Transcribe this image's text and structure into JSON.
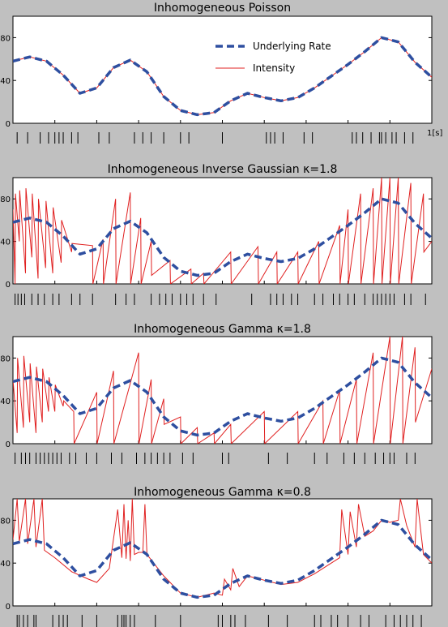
{
  "figure": {
    "background": "#c0c0c0",
    "time_unit_label": "1[s]"
  },
  "colors": {
    "rate": "#2e4fa0",
    "intensity": "#e02020",
    "panel": "#ffffff",
    "axis": "#000000"
  },
  "chart_data": [
    {
      "type": "line",
      "title": "Inhomogeneous Poisson",
      "x_range": [
        0,
        1
      ],
      "ylim": [
        0,
        100
      ],
      "yticks": [
        0,
        40,
        80
      ],
      "legend": {
        "placement": "top-right",
        "entries": [
          "Underlying Rate",
          "Intensity"
        ]
      },
      "series": [
        {
          "name": "Underlying Rate",
          "style": "dashed",
          "x": [
            0,
            0.04,
            0.08,
            0.12,
            0.16,
            0.2,
            0.24,
            0.28,
            0.32,
            0.36,
            0.4,
            0.44,
            0.48,
            0.52,
            0.56,
            0.6,
            0.64,
            0.68,
            0.72,
            0.76,
            0.8,
            0.84,
            0.88,
            0.92,
            0.96,
            1
          ],
          "y": [
            58,
            62,
            58,
            45,
            28,
            33,
            52,
            59,
            48,
            25,
            12,
            8,
            10,
            21,
            28,
            24,
            21,
            24,
            33,
            44,
            55,
            67,
            80,
            76,
            57,
            43
          ]
        },
        {
          "name": "Intensity",
          "style": "solid",
          "x": [
            0,
            0.04,
            0.08,
            0.12,
            0.16,
            0.2,
            0.24,
            0.28,
            0.32,
            0.36,
            0.4,
            0.44,
            0.48,
            0.52,
            0.56,
            0.6,
            0.64,
            0.68,
            0.72,
            0.76,
            0.8,
            0.84,
            0.88,
            0.92,
            0.96,
            1
          ],
          "y": [
            58,
            62,
            58,
            45,
            28,
            33,
            52,
            59,
            48,
            25,
            12,
            8,
            10,
            21,
            28,
            24,
            21,
            24,
            33,
            44,
            55,
            67,
            80,
            76,
            57,
            43
          ]
        }
      ],
      "spikes": [
        0.01,
        0.035,
        0.065,
        0.085,
        0.1,
        0.11,
        0.12,
        0.14,
        0.155,
        0.205,
        0.23,
        0.29,
        0.31,
        0.33,
        0.36,
        0.4,
        0.42,
        0.5,
        0.605,
        0.615,
        0.625,
        0.645,
        0.695,
        0.715,
        0.81,
        0.82,
        0.835,
        0.855,
        0.875,
        0.88,
        0.89,
        0.905,
        0.915,
        0.935,
        0.955
      ]
    },
    {
      "type": "line",
      "title": "Inhomogeneous Inverse Gaussian κ=1.8",
      "x_range": [
        0,
        1
      ],
      "ylim": [
        0,
        100
      ],
      "yticks": [
        0,
        40,
        80
      ],
      "series": [
        {
          "name": "Underlying Rate",
          "style": "dashed",
          "x": [
            0,
            0.04,
            0.08,
            0.12,
            0.16,
            0.2,
            0.24,
            0.28,
            0.32,
            0.36,
            0.4,
            0.44,
            0.48,
            0.52,
            0.56,
            0.6,
            0.64,
            0.68,
            0.72,
            0.76,
            0.8,
            0.84,
            0.88,
            0.92,
            0.96,
            1
          ],
          "y": [
            58,
            62,
            58,
            45,
            28,
            33,
            52,
            59,
            48,
            25,
            12,
            8,
            10,
            21,
            28,
            24,
            21,
            24,
            33,
            44,
            55,
            67,
            80,
            76,
            57,
            43
          ]
        },
        {
          "name": "Intensity",
          "style": "solid",
          "x": [
            0,
            0.005,
            0.006,
            0.015,
            0.016,
            0.03,
            0.031,
            0.045,
            0.046,
            0.06,
            0.061,
            0.078,
            0.079,
            0.095,
            0.096,
            0.115,
            0.116,
            0.14,
            0.141,
            0.19,
            0.191,
            0.215,
            0.216,
            0.245,
            0.246,
            0.28,
            0.281,
            0.305,
            0.306,
            0.33,
            0.331,
            0.375,
            0.376,
            0.425,
            0.426,
            0.455,
            0.456,
            0.52,
            0.521,
            0.585,
            0.586,
            0.63,
            0.631,
            0.68,
            0.681,
            0.73,
            0.731,
            0.78,
            0.781,
            0.8,
            0.801,
            0.83,
            0.831,
            0.86,
            0.861,
            0.88,
            0.881,
            0.9,
            0.901,
            0.92,
            0.921,
            0.95,
            0.951,
            0.98,
            0.981,
            1
          ],
          "y": [
            70,
            0,
            85,
            40,
            88,
            10,
            90,
            25,
            85,
            5,
            80,
            15,
            78,
            10,
            72,
            20,
            60,
            30,
            38,
            36,
            0,
            42,
            0,
            80,
            0,
            86,
            0,
            62,
            0,
            40,
            8,
            22,
            0,
            14,
            0,
            10,
            0,
            30,
            0,
            35,
            0,
            30,
            0,
            30,
            0,
            40,
            0,
            55,
            0,
            70,
            0,
            85,
            0,
            90,
            0,
            100,
            0,
            100,
            0,
            100,
            0,
            95,
            0,
            85,
            30,
            40
          ]
        }
      ],
      "spikes": [
        0.005,
        0.012,
        0.02,
        0.028,
        0.045,
        0.06,
        0.075,
        0.095,
        0.11,
        0.14,
        0.16,
        0.19,
        0.245,
        0.27,
        0.29,
        0.33,
        0.35,
        0.365,
        0.38,
        0.4,
        0.415,
        0.43,
        0.455,
        0.485,
        0.57,
        0.615,
        0.63,
        0.645,
        0.665,
        0.68,
        0.72,
        0.74,
        0.765,
        0.78,
        0.8,
        0.815,
        0.84,
        0.86,
        0.87,
        0.88,
        0.89,
        0.9,
        0.91,
        0.935,
        0.95,
        0.985
      ]
    },
    {
      "type": "line",
      "title": "Inhomogeneous Gamma κ=1.8",
      "x_range": [
        0,
        1
      ],
      "ylim": [
        0,
        100
      ],
      "yticks": [
        0,
        40,
        80
      ],
      "series": [
        {
          "name": "Underlying Rate",
          "style": "dashed",
          "x": [
            0,
            0.04,
            0.08,
            0.12,
            0.16,
            0.2,
            0.24,
            0.28,
            0.32,
            0.36,
            0.4,
            0.44,
            0.48,
            0.52,
            0.56,
            0.6,
            0.64,
            0.68,
            0.72,
            0.76,
            0.8,
            0.84,
            0.88,
            0.92,
            0.96,
            1
          ],
          "y": [
            58,
            62,
            58,
            45,
            28,
            33,
            52,
            59,
            48,
            25,
            12,
            8,
            10,
            21,
            28,
            24,
            21,
            24,
            33,
            44,
            55,
            67,
            80,
            76,
            57,
            43
          ]
        },
        {
          "name": "Intensity",
          "style": "solid",
          "x": [
            0,
            0.01,
            0.011,
            0.025,
            0.026,
            0.04,
            0.041,
            0.055,
            0.056,
            0.07,
            0.071,
            0.085,
            0.086,
            0.1,
            0.101,
            0.12,
            0.121,
            0.145,
            0.146,
            0.2,
            0.201,
            0.24,
            0.241,
            0.3,
            0.301,
            0.33,
            0.331,
            0.36,
            0.361,
            0.4,
            0.401,
            0.44,
            0.441,
            0.48,
            0.481,
            0.52,
            0.521,
            0.6,
            0.601,
            0.68,
            0.681,
            0.74,
            0.741,
            0.78,
            0.781,
            0.82,
            0.821,
            0.86,
            0.861,
            0.9,
            0.901,
            0.93,
            0.931,
            0.96,
            0.961,
            1
          ],
          "y": [
            60,
            10,
            80,
            15,
            82,
            20,
            75,
            10,
            72,
            20,
            70,
            30,
            62,
            30,
            55,
            35,
            40,
            30,
            0,
            48,
            0,
            68,
            0,
            85,
            0,
            60,
            0,
            42,
            18,
            25,
            0,
            15,
            0,
            10,
            0,
            18,
            0,
            30,
            0,
            30,
            0,
            40,
            0,
            50,
            0,
            60,
            0,
            85,
            0,
            100,
            0,
            100,
            0,
            90,
            20,
            70
          ]
        }
      ],
      "spikes": [
        0.005,
        0.02,
        0.03,
        0.04,
        0.055,
        0.065,
        0.075,
        0.085,
        0.095,
        0.105,
        0.115,
        0.135,
        0.15,
        0.175,
        0.2,
        0.235,
        0.26,
        0.295,
        0.315,
        0.33,
        0.345,
        0.36,
        0.375,
        0.405,
        0.43,
        0.5,
        0.515,
        0.61,
        0.655,
        0.72,
        0.75,
        0.79,
        0.815,
        0.84,
        0.865,
        0.885,
        0.9,
        0.91,
        0.94,
        0.96
      ]
    },
    {
      "type": "line",
      "title": "Inhomogeneous Gamma κ=0.8",
      "x_range": [
        0,
        1
      ],
      "ylim": [
        0,
        100
      ],
      "yticks": [
        0,
        40,
        80
      ],
      "series": [
        {
          "name": "Underlying Rate",
          "style": "dashed",
          "x": [
            0,
            0.04,
            0.08,
            0.12,
            0.16,
            0.2,
            0.24,
            0.28,
            0.32,
            0.36,
            0.4,
            0.44,
            0.48,
            0.52,
            0.56,
            0.6,
            0.64,
            0.68,
            0.72,
            0.76,
            0.8,
            0.84,
            0.88,
            0.92,
            0.96,
            1
          ],
          "y": [
            58,
            62,
            58,
            45,
            28,
            33,
            52,
            59,
            48,
            25,
            12,
            8,
            10,
            21,
            28,
            24,
            21,
            24,
            33,
            44,
            55,
            67,
            80,
            76,
            57,
            43
          ]
        },
        {
          "name": "Intensity",
          "style": "solid",
          "x": [
            0,
            0.01,
            0.015,
            0.03,
            0.035,
            0.05,
            0.055,
            0.07,
            0.075,
            0.1,
            0.14,
            0.18,
            0.2,
            0.23,
            0.25,
            0.26,
            0.265,
            0.27,
            0.275,
            0.28,
            0.285,
            0.29,
            0.3,
            0.31,
            0.315,
            0.32,
            0.36,
            0.4,
            0.44,
            0.48,
            0.5,
            0.505,
            0.52,
            0.525,
            0.54,
            0.56,
            0.6,
            0.64,
            0.68,
            0.72,
            0.76,
            0.78,
            0.785,
            0.8,
            0.805,
            0.82,
            0.825,
            0.84,
            0.86,
            0.88,
            0.9,
            0.92,
            0.925,
            0.94,
            0.96,
            0.965,
            0.98,
            1
          ],
          "y": [
            62,
            100,
            60,
            100,
            58,
            100,
            55,
            100,
            52,
            45,
            32,
            25,
            22,
            35,
            90,
            45,
            95,
            44,
            80,
            42,
            100,
            48,
            50,
            50,
            95,
            48,
            28,
            12,
            8,
            12,
            10,
            25,
            15,
            35,
            18,
            28,
            24,
            20,
            22,
            30,
            40,
            45,
            90,
            48,
            88,
            55,
            95,
            65,
            70,
            80,
            78,
            80,
            100,
            75,
            55,
            100,
            48,
            40
          ]
        }
      ],
      "spikes": [
        0.01,
        0.015,
        0.025,
        0.035,
        0.05,
        0.055,
        0.095,
        0.11,
        0.12,
        0.13,
        0.165,
        0.2,
        0.25,
        0.26,
        0.265,
        0.27,
        0.28,
        0.29,
        0.34,
        0.4,
        0.49,
        0.5,
        0.52,
        0.53,
        0.555,
        0.61,
        0.655,
        0.72,
        0.735,
        0.76,
        0.775,
        0.8,
        0.83,
        0.85,
        0.89,
        0.91,
        0.925,
        0.94,
        0.955,
        0.975
      ]
    }
  ]
}
